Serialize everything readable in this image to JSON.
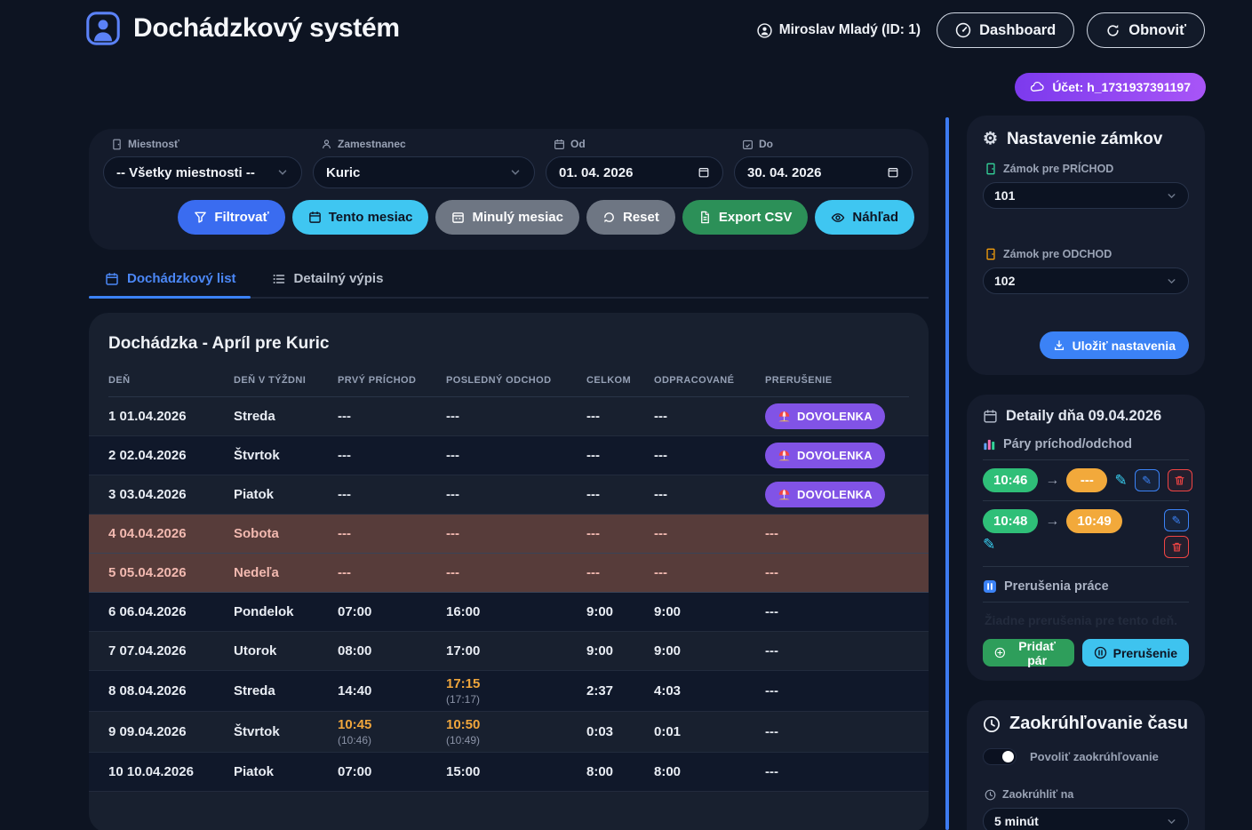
{
  "header": {
    "app_title": "Dochádzkový systém",
    "user": "Miroslav Mladý (ID: 1)",
    "dashboard_label": "Dashboard",
    "refresh_label": "Obnoviť",
    "account_badge": "Účet: h_1731937391197"
  },
  "filters": {
    "room_label": "Miestnosť",
    "room_value": "-- Všetky miestnosti --",
    "employee_label": "Zamestnanec",
    "employee_value": "Kuric",
    "from_label": "Od",
    "from_value": "01. 04. 2026",
    "to_label": "Do",
    "to_value": "30. 04. 2026",
    "buttons": {
      "filter": "Filtrovať",
      "this_month": "Tento mesiac",
      "last_month": "Minulý mesiac",
      "reset": "Reset",
      "export_csv": "Export CSV",
      "preview": "Náhľad"
    }
  },
  "tabs": [
    {
      "label": "Dochádzkový list",
      "active": true
    },
    {
      "label": "Detailný výpis",
      "active": false
    }
  ],
  "attendance": {
    "title": "Dochádzka - Apríl pre Kuric",
    "columns": [
      "DEŇ",
      "DEŇ V TÝŽDNI",
      "PRVÝ PRÍCHOD",
      "POSLEDNÝ ODCHOD",
      "CELKOM",
      "ODPRACOVANÉ",
      "PRERUŠENIE"
    ],
    "rows": [
      {
        "day": "1 01.04.2026",
        "weekday": "Streda",
        "in": "---",
        "in_raw": "",
        "in_rounded": false,
        "out": "---",
        "out_raw": "",
        "out_rounded": false,
        "total": "---",
        "worked": "---",
        "interruption": "DOVOLENKA",
        "type": "vacation"
      },
      {
        "day": "2 02.04.2026",
        "weekday": "Štvrtok",
        "in": "---",
        "in_raw": "",
        "in_rounded": false,
        "out": "---",
        "out_raw": "",
        "out_rounded": false,
        "total": "---",
        "worked": "---",
        "interruption": "DOVOLENKA",
        "type": "vacation"
      },
      {
        "day": "3 03.04.2026",
        "weekday": "Piatok",
        "in": "---",
        "in_raw": "",
        "in_rounded": false,
        "out": "---",
        "out_raw": "",
        "out_rounded": false,
        "total": "---",
        "worked": "---",
        "interruption": "DOVOLENKA",
        "type": "vacation"
      },
      {
        "day": "4 04.04.2026",
        "weekday": "Sobota",
        "in": "---",
        "in_raw": "",
        "in_rounded": false,
        "out": "---",
        "out_raw": "",
        "out_rounded": false,
        "total": "---",
        "worked": "---",
        "interruption": "---",
        "type": "weekend"
      },
      {
        "day": "5 05.04.2026",
        "weekday": "Nedeľa",
        "in": "---",
        "in_raw": "",
        "in_rounded": false,
        "out": "---",
        "out_raw": "",
        "out_rounded": false,
        "total": "---",
        "worked": "---",
        "interruption": "---",
        "type": "weekend"
      },
      {
        "day": "6 06.04.2026",
        "weekday": "Pondelok",
        "in": "07:00",
        "in_raw": "",
        "in_rounded": false,
        "out": "16:00",
        "out_raw": "",
        "out_rounded": false,
        "total": "9:00",
        "worked": "9:00",
        "interruption": "---",
        "type": "normal"
      },
      {
        "day": "7 07.04.2026",
        "weekday": "Utorok",
        "in": "08:00",
        "in_raw": "",
        "in_rounded": false,
        "out": "17:00",
        "out_raw": "",
        "out_rounded": false,
        "total": "9:00",
        "worked": "9:00",
        "interruption": "---",
        "type": "normal"
      },
      {
        "day": "8 08.04.2026",
        "weekday": "Streda",
        "in": "14:40",
        "in_raw": "",
        "in_rounded": false,
        "out": "17:15",
        "out_raw": "(17:17)",
        "out_rounded": true,
        "total": "2:37",
        "worked": "4:03",
        "interruption": "---",
        "type": "normal"
      },
      {
        "day": "9 09.04.2026",
        "weekday": "Štvrtok",
        "in": "10:45",
        "in_raw": "(10:46)",
        "in_rounded": true,
        "out": "10:50",
        "out_raw": "(10:49)",
        "out_rounded": true,
        "total": "0:03",
        "worked": "0:01",
        "interruption": "---",
        "type": "normal"
      },
      {
        "day": "10 10.04.2026",
        "weekday": "Piatok",
        "in": "07:00",
        "in_raw": "",
        "in_rounded": false,
        "out": "15:00",
        "out_raw": "",
        "out_rounded": false,
        "total": "8:00",
        "worked": "8:00",
        "interruption": "---",
        "type": "normal"
      }
    ]
  },
  "locks_panel": {
    "title": "Nastavenie zámkov",
    "arrival_label": "Zámok pre PRÍCHOD",
    "arrival_value": "101",
    "departure_label": "Zámok pre ODCHOD",
    "departure_value": "102",
    "save_label": "Uložiť nastavenia"
  },
  "day_details": {
    "title": "Detaily dňa 09.04.2026",
    "pairs_heading": "Páry príchod/odchod",
    "pairs": [
      {
        "in": "10:46",
        "out": "---",
        "edited_marker": true,
        "layout": "inline"
      },
      {
        "in": "10:48",
        "out": "10:49",
        "edited_marker": true,
        "layout": "stacked"
      }
    ],
    "interruptions_heading": "Prerušenia práce",
    "no_interruptions_text": "Žiadne prerušenia pre tento deň.",
    "add_pair_label": "Pridať pár",
    "interruption_label": "Prerušenie"
  },
  "rounding_panel": {
    "title": "Zaokrúhľovanie času",
    "toggle_label": "Povoliť zaokrúhľovanie",
    "toggle_on": true,
    "round_to_label": "Zaokrúhliť na",
    "round_to_value": "5 minút"
  },
  "icons": {
    "logo": "user-badge",
    "user": "user-circle",
    "dashboard": "gauge",
    "refresh": "circular-arrow",
    "account": "cloud",
    "room": "door",
    "employee": "person",
    "date": "calendar",
    "filter": "funnel",
    "reset": "undo-arrow",
    "export_csv": "file",
    "preview": "eye",
    "tab_list": "calendar",
    "tab_detail": "list",
    "vacation": "beach-umbrella",
    "settings": "gear ⚙",
    "save": "download-tray",
    "pairs": "bar-chart",
    "edited": "pencil ✎",
    "edit": "pencil ✎",
    "delete": "trash",
    "pause": "pause-square",
    "add": "plus-circle",
    "clock": "clock",
    "arrow": "→"
  },
  "colors": {
    "page_bg": "#0d1422",
    "panel_bg": "#151c2d",
    "card_bg": "#18202f",
    "accent_blue": "#3b82f6",
    "button_blue": "#3a6cf0",
    "cyan": "#3fc6f1",
    "gray": "#6e7683",
    "green": "#2c9058",
    "vacation_purple": "#8153e6",
    "badge_gradient": "#7c3aed → #a855f7",
    "orange_time": "#f0a63c",
    "pill_green": "#2fbf78",
    "pill_orange": "#f2a93b",
    "weekend_bg": "#573c3a",
    "danger_red": "#ef4444"
  }
}
